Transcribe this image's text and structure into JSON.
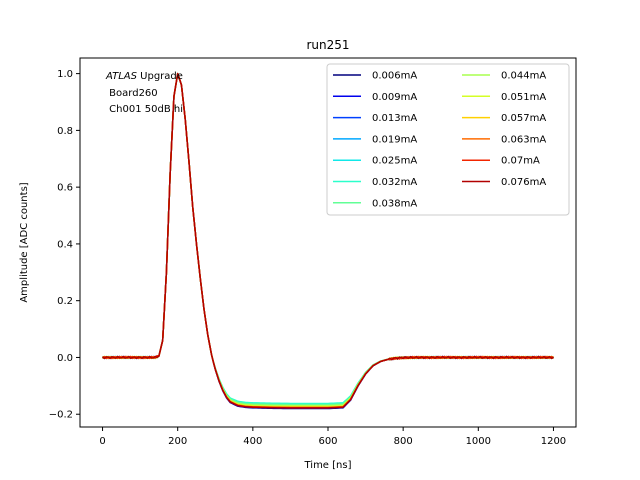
{
  "chart_data": {
    "type": "line",
    "title": "run251",
    "xlabel": "Time [ns]",
    "ylabel": "Amplitude [ADC counts]",
    "xlim": [
      -60,
      1260
    ],
    "ylim": [
      -0.245,
      1.055
    ],
    "xticks": [
      0,
      200,
      400,
      600,
      800,
      1000,
      1200
    ],
    "yticks": [
      -0.2,
      0.0,
      0.2,
      0.4,
      0.6,
      0.8,
      1.0
    ],
    "xtick_labels": [
      "0",
      "200",
      "400",
      "600",
      "800",
      "1000",
      "1200"
    ],
    "ytick_labels": [
      "−0.2",
      "0.0",
      "0.2",
      "0.4",
      "0.6",
      "0.8",
      "1.0"
    ],
    "grid": false,
    "legend_position": "top-right",
    "legend_columns": 2,
    "annotation": {
      "italic": "ATLAS",
      "line1_rest": " Upgrade",
      "line2": " Board260",
      "line3": " Ch001 50dB hi"
    },
    "pulse_shape": {
      "x": [
        0,
        100,
        140,
        150,
        160,
        170,
        180,
        190,
        200,
        210,
        220,
        230,
        240,
        250,
        260,
        270,
        280,
        290,
        300,
        310,
        320,
        330,
        340,
        360,
        380,
        400,
        450,
        500,
        550,
        600,
        640,
        660,
        680,
        700,
        720,
        740,
        760,
        780,
        800,
        850,
        900,
        1000,
        1100,
        1200
      ],
      "shape": [
        0,
        0,
        0,
        0.005,
        0.06,
        0.3,
        0.65,
        0.92,
        1.0,
        0.96,
        0.84,
        0.69,
        0.53,
        0.4,
        0.28,
        0.17,
        0.08,
        0.01,
        -0.05,
        -0.1,
        -0.14,
        -0.17,
        -0.19,
        -0.205,
        -0.21,
        -0.212,
        -0.214,
        -0.215,
        -0.215,
        -0.215,
        -0.212,
        -0.18,
        -0.12,
        -0.07,
        -0.035,
        -0.017,
        -0.008,
        -0.003,
        -0.001,
        0,
        0,
        0,
        0,
        0
      ]
    },
    "series": [
      {
        "name": "0.006mA",
        "color": "#00007f",
        "undershoot": -0.18
      },
      {
        "name": "0.009mA",
        "color": "#0000ed",
        "undershoot": -0.179
      },
      {
        "name": "0.013mA",
        "color": "#0040ff",
        "undershoot": -0.177
      },
      {
        "name": "0.019mA",
        "color": "#00a8ff",
        "undershoot": -0.174
      },
      {
        "name": "0.025mA",
        "color": "#11e8e8",
        "undershoot": -0.163
      },
      {
        "name": "0.032mA",
        "color": "#2bffcb",
        "undershoot": -0.162
      },
      {
        "name": "0.038mA",
        "color": "#61ff96",
        "undershoot": -0.166
      },
      {
        "name": "0.044mA",
        "color": "#a8ff4f",
        "undershoot": -0.17
      },
      {
        "name": "0.051mA",
        "color": "#d4ff26",
        "undershoot": -0.173
      },
      {
        "name": "0.057mA",
        "color": "#ffd000",
        "undershoot": -0.175
      },
      {
        "name": "0.063mA",
        "color": "#ff6b00",
        "undershoot": -0.176
      },
      {
        "name": "0.07mA",
        "color": "#f22500",
        "undershoot": -0.177
      },
      {
        "name": "0.076mA",
        "color": "#b20000",
        "undershoot": -0.178
      }
    ]
  }
}
